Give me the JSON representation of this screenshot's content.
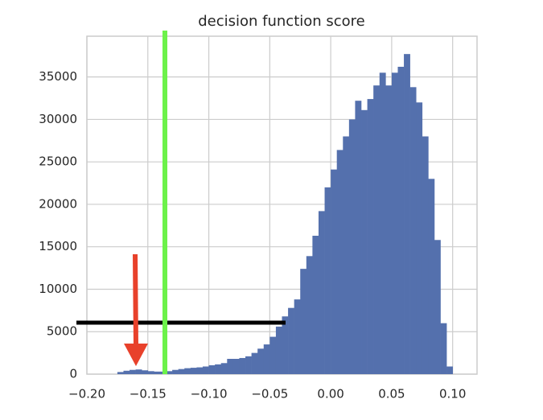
{
  "chart_data": {
    "type": "histogram",
    "title": "decision function score",
    "bins": [
      -0.175,
      -0.17,
      -0.165,
      -0.16,
      -0.155,
      -0.15,
      -0.145,
      -0.14,
      -0.135,
      -0.13,
      -0.125,
      -0.12,
      -0.115,
      -0.11,
      -0.105,
      -0.1,
      -0.095,
      -0.09,
      -0.085,
      -0.08,
      -0.075,
      -0.07,
      -0.065,
      -0.06,
      -0.055,
      -0.05,
      -0.045,
      -0.04,
      -0.035,
      -0.03,
      -0.025,
      -0.02,
      -0.015,
      -0.01,
      -0.005,
      0.0,
      0.005,
      0.01,
      0.015,
      0.02,
      0.025,
      0.03,
      0.035,
      0.04,
      0.045,
      0.05,
      0.055,
      0.06,
      0.065,
      0.07,
      0.075,
      0.08,
      0.085,
      0.09,
      0.095,
      0.1,
      0.105
    ],
    "values": [
      250,
      400,
      500,
      550,
      450,
      350,
      300,
      300,
      350,
      500,
      600,
      700,
      750,
      800,
      900,
      1050,
      1150,
      1300,
      1800,
      1800,
      1900,
      2100,
      2500,
      3000,
      3500,
      4400,
      5600,
      6800,
      7800,
      8800,
      12400,
      13900,
      16300,
      19200,
      22000,
      24100,
      26400,
      28000,
      30000,
      32200,
      31100,
      32400,
      34000,
      35500,
      34000,
      35500,
      36200,
      37700,
      33800,
      32000,
      28000,
      23000,
      15800,
      6000,
      900,
      0
    ],
    "color": "#5470ad",
    "xlim": [
      -0.2,
      0.12
    ],
    "xticks": [
      {
        "value": -0.2,
        "label": "−0.20"
      },
      {
        "value": -0.15,
        "label": "−0.15"
      },
      {
        "value": -0.1,
        "label": "−0.10"
      },
      {
        "value": -0.05,
        "label": "−0.05"
      },
      {
        "value": 0,
        "label": "0.00"
      },
      {
        "value": 0.05,
        "label": "0.05"
      },
      {
        "value": 0.1,
        "label": "0.10"
      }
    ],
    "ylim": [
      0,
      39800
    ],
    "yticks": [
      0,
      5000,
      10000,
      15000,
      20000,
      25000,
      30000,
      35000
    ],
    "grid": true
  }
}
